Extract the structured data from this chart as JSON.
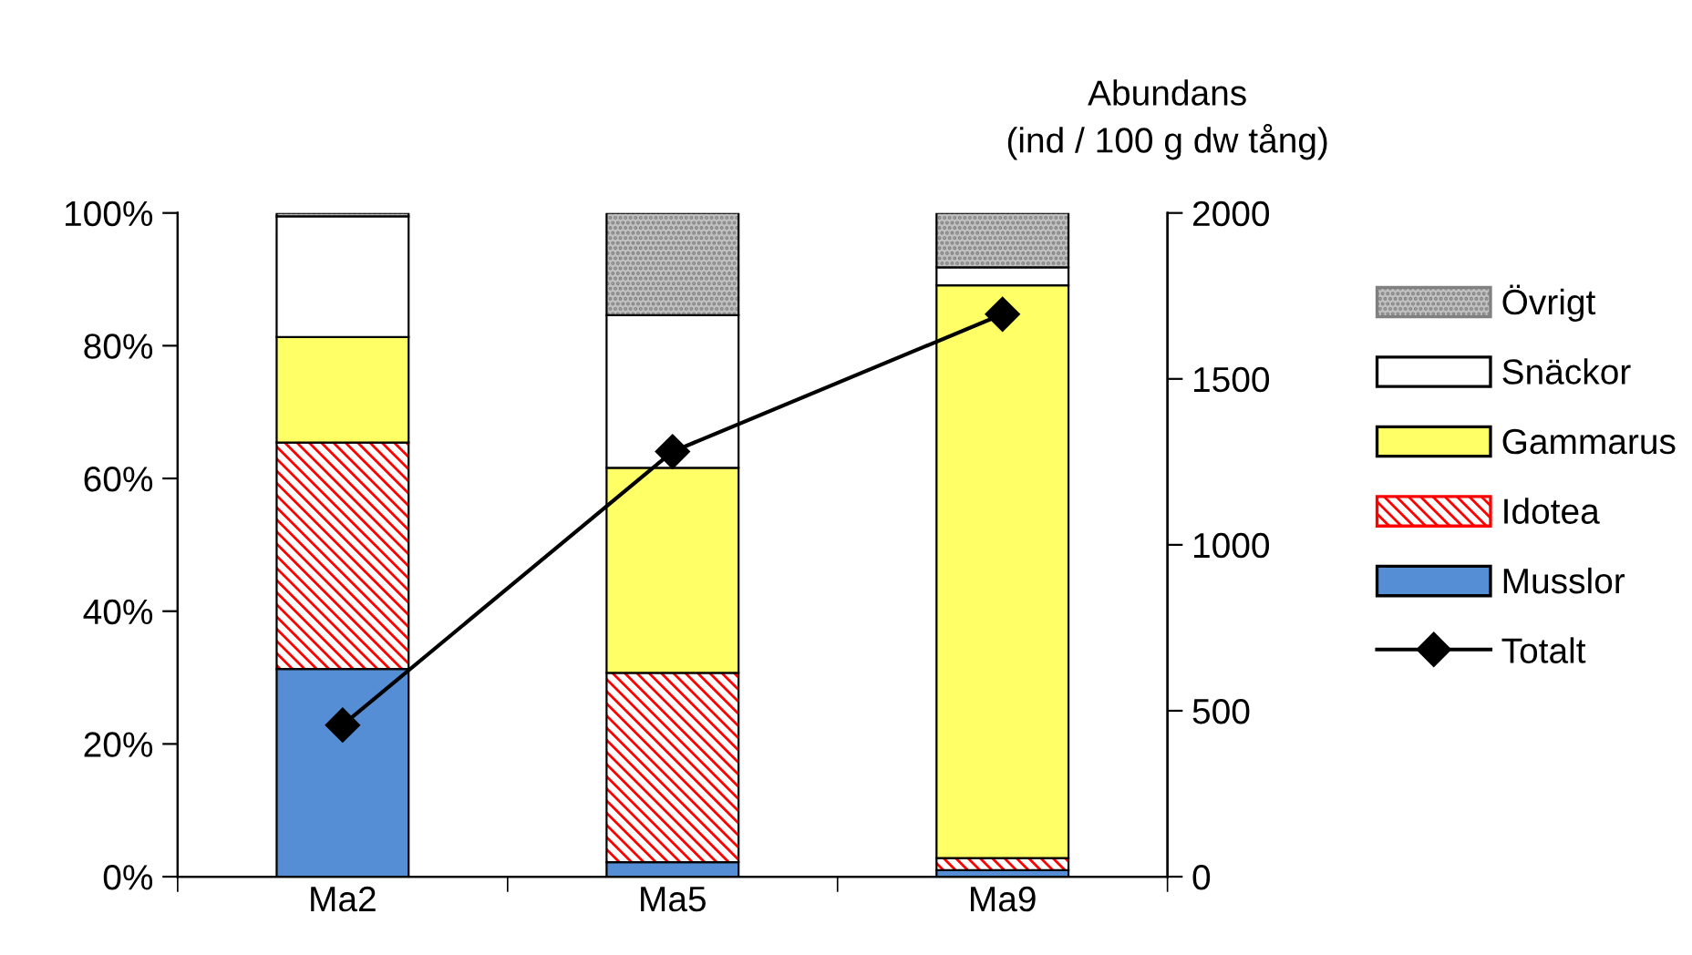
{
  "chart_data": {
    "type": "bar",
    "stacked": true,
    "categories": [
      "Ma2",
      "Ma5",
      "Ma9"
    ],
    "series": [
      {
        "name": "Musslor",
        "color": "#558ed5",
        "values": [
          31.3,
          2.2,
          1.0
        ]
      },
      {
        "name": "Idotea",
        "color": "#ff0000",
        "values": [
          34.1,
          28.5,
          1.8
        ]
      },
      {
        "name": "Gammarus",
        "color": "#ffff66",
        "values": [
          15.9,
          30.9,
          86.3
        ]
      },
      {
        "name": "Snäckor",
        "color": "#ffffff",
        "values": [
          18.2,
          23.0,
          2.7
        ]
      },
      {
        "name": "Övrigt",
        "color": "#c0c0c0",
        "values": [
          0.5,
          15.4,
          8.2
        ]
      },
      {
        "name": "Totalt",
        "type": "line",
        "axis": "y2",
        "color": "#000000",
        "marker": "diamond",
        "values": [
          457,
          1281,
          1695
        ]
      }
    ],
    "ylim": [
      0,
      100
    ],
    "yticks": [
      {
        "value": 0,
        "label": "0%"
      },
      {
        "value": 20,
        "label": "20%"
      },
      {
        "value": 40,
        "label": "40%"
      },
      {
        "value": 60,
        "label": "60%"
      },
      {
        "value": 80,
        "label": "80%"
      },
      {
        "value": 100,
        "label": "100%"
      }
    ],
    "y2lim": [
      0,
      2000
    ],
    "y2ticks": [
      0,
      500,
      1000,
      1500,
      2000
    ],
    "y2label": "Abundans\n(ind / 100 g dw tång)",
    "legend": "right",
    "grid": false
  }
}
